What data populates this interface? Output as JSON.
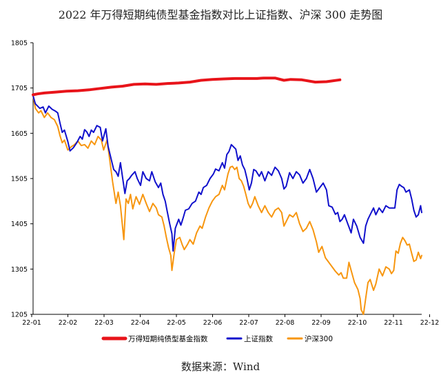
{
  "chart_data": {
    "type": "line",
    "title": "2022 年万得短期纯债型基金指数对比上证指数、沪深 300 走势图",
    "source": "数据来源：Wind",
    "x_ticks": [
      "22-01",
      "22-02",
      "22-03",
      "22-04",
      "22-05",
      "22-06",
      "22-07",
      "22-08",
      "22-09",
      "22-10",
      "22-11",
      "22-12"
    ],
    "y_ticks": [
      1205,
      1305,
      1405,
      1505,
      1605,
      1705,
      1805
    ],
    "ylim": [
      1205,
      1805
    ],
    "grid": false,
    "legend_position": "bottom",
    "series": [
      {
        "name": "万得短期纯债型基金指数",
        "color": "#e8141a",
        "points": [
          [
            0,
            1690
          ],
          [
            0.2,
            1692
          ],
          [
            0.5,
            1694
          ],
          [
            1,
            1696
          ],
          [
            1.5,
            1698
          ],
          [
            2,
            1699
          ],
          [
            2.5,
            1701
          ],
          [
            3,
            1704
          ],
          [
            3.5,
            1707
          ],
          [
            4,
            1709
          ],
          [
            4.5,
            1713
          ],
          [
            5,
            1714
          ],
          [
            5.5,
            1713
          ],
          [
            6,
            1715
          ],
          [
            6.5,
            1716
          ],
          [
            7,
            1718
          ],
          [
            7.5,
            1722
          ],
          [
            8,
            1724
          ],
          [
            8.5,
            1725
          ],
          [
            9,
            1726
          ],
          [
            9.5,
            1726
          ],
          [
            10,
            1726
          ],
          [
            10.3,
            1727
          ],
          [
            10.8,
            1727
          ],
          [
            11.2,
            1722
          ],
          [
            11.5,
            1724
          ],
          [
            12,
            1723
          ],
          [
            12.6,
            1718
          ],
          [
            13.1,
            1719
          ],
          [
            13.7,
            1723
          ]
        ]
      },
      {
        "name": "上证指数",
        "color": "#1010cc",
        "points": [
          [
            0,
            1688
          ],
          [
            0.1,
            1670
          ],
          [
            0.3,
            1660
          ],
          [
            0.45,
            1663
          ],
          [
            0.55,
            1650
          ],
          [
            0.7,
            1665
          ],
          [
            0.85,
            1658
          ],
          [
            1,
            1654
          ],
          [
            1.1,
            1650
          ],
          [
            1.2,
            1628
          ],
          [
            1.3,
            1607
          ],
          [
            1.4,
            1612
          ],
          [
            1.55,
            1587
          ],
          [
            1.65,
            1566
          ],
          [
            1.8,
            1573
          ],
          [
            1.95,
            1584
          ],
          [
            2.1,
            1598
          ],
          [
            2.2,
            1592
          ],
          [
            2.3,
            1613
          ],
          [
            2.4,
            1608
          ],
          [
            2.5,
            1598
          ],
          [
            2.6,
            1612
          ],
          [
            2.7,
            1607
          ],
          [
            2.85,
            1622
          ],
          [
            3,
            1618
          ],
          [
            3.1,
            1588
          ],
          [
            3.25,
            1615
          ],
          [
            3.35,
            1576
          ],
          [
            3.5,
            1545
          ],
          [
            3.6,
            1525
          ],
          [
            3.7,
            1520
          ],
          [
            3.8,
            1510
          ],
          [
            3.9,
            1540
          ],
          [
            4,
            1506
          ],
          [
            4.1,
            1472
          ],
          [
            4.2,
            1500
          ],
          [
            4.3,
            1505
          ],
          [
            4.4,
            1512
          ],
          [
            4.55,
            1520
          ],
          [
            4.65,
            1505
          ],
          [
            4.8,
            1490
          ],
          [
            4.9,
            1520
          ],
          [
            5.05,
            1505
          ],
          [
            5.2,
            1500
          ],
          [
            5.3,
            1520
          ],
          [
            5.45,
            1498
          ],
          [
            5.6,
            1485
          ],
          [
            5.7,
            1495
          ],
          [
            5.8,
            1470
          ],
          [
            5.9,
            1455
          ],
          [
            6,
            1430
          ],
          [
            6.1,
            1405
          ],
          [
            6.2,
            1383
          ],
          [
            6.25,
            1345
          ],
          [
            6.35,
            1395
          ],
          [
            6.5,
            1415
          ],
          [
            6.6,
            1402
          ],
          [
            6.7,
            1418
          ],
          [
            6.8,
            1435
          ],
          [
            6.95,
            1438
          ],
          [
            7.1,
            1450
          ],
          [
            7.25,
            1455
          ],
          [
            7.4,
            1475
          ],
          [
            7.5,
            1470
          ],
          [
            7.6,
            1485
          ],
          [
            7.75,
            1490
          ],
          [
            7.9,
            1505
          ],
          [
            8.05,
            1515
          ],
          [
            8.15,
            1526
          ],
          [
            8.3,
            1522
          ],
          [
            8.45,
            1540
          ],
          [
            8.55,
            1528
          ],
          [
            8.65,
            1558
          ],
          [
            8.75,
            1565
          ],
          [
            8.85,
            1580
          ],
          [
            8.95,
            1575
          ],
          [
            9.05,
            1570
          ],
          [
            9.15,
            1545
          ],
          [
            9.25,
            1555
          ],
          [
            9.35,
            1535
          ],
          [
            9.45,
            1525
          ],
          [
            9.55,
            1505
          ],
          [
            9.65,
            1480
          ],
          [
            9.75,
            1495
          ],
          [
            9.85,
            1525
          ],
          [
            9.95,
            1522
          ],
          [
            10.1,
            1510
          ],
          [
            10.2,
            1520
          ],
          [
            10.35,
            1500
          ],
          [
            10.5,
            1520
          ],
          [
            10.65,
            1512
          ],
          [
            10.8,
            1530
          ],
          [
            10.95,
            1522
          ],
          [
            11.1,
            1505
          ],
          [
            11.2,
            1482
          ],
          [
            11.3,
            1488
          ],
          [
            11.45,
            1518
          ],
          [
            11.6,
            1505
          ],
          [
            11.75,
            1520
          ],
          [
            11.9,
            1513
          ],
          [
            12.05,
            1495
          ],
          [
            12.2,
            1505
          ],
          [
            12.35,
            1525
          ],
          [
            12.5,
            1505
          ],
          [
            12.65,
            1475
          ],
          [
            12.8,
            1485
          ],
          [
            12.95,
            1495
          ],
          [
            13.1,
            1480
          ],
          [
            13.2,
            1445
          ],
          [
            13.35,
            1442
          ],
          [
            13.5,
            1426
          ],
          [
            13.6,
            1430
          ],
          [
            13.7,
            1410
          ],
          [
            13.8,
            1415
          ],
          [
            13.9,
            1425
          ],
          [
            14.05,
            1405
          ],
          [
            14.2,
            1385
          ],
          [
            14.3,
            1415
          ],
          [
            14.45,
            1400
          ],
          [
            14.6,
            1375
          ],
          [
            14.75,
            1362
          ],
          [
            14.85,
            1400
          ],
          [
            14.95,
            1415
          ],
          [
            15.05,
            1425
          ],
          [
            15.2,
            1440
          ],
          [
            15.3,
            1425
          ],
          [
            15.45,
            1440
          ],
          [
            15.6,
            1430
          ],
          [
            15.75,
            1445
          ],
          [
            15.9,
            1440
          ],
          [
            16.05,
            1440
          ],
          [
            16.15,
            1440
          ],
          [
            16.25,
            1480
          ],
          [
            16.35,
            1492
          ],
          [
            16.45,
            1488
          ],
          [
            16.55,
            1485
          ],
          [
            16.65,
            1475
          ],
          [
            16.8,
            1480
          ],
          [
            16.9,
            1460
          ],
          [
            17.0,
            1435
          ],
          [
            17.1,
            1420
          ],
          [
            17.2,
            1425
          ],
          [
            17.3,
            1445
          ],
          [
            17.35,
            1430
          ]
        ]
      },
      {
        "name": "沪深300",
        "color": "#f7960f",
        "points": [
          [
            0,
            1688
          ],
          [
            0.1,
            1660
          ],
          [
            0.25,
            1650
          ],
          [
            0.35,
            1655
          ],
          [
            0.5,
            1640
          ],
          [
            0.65,
            1650
          ],
          [
            0.8,
            1640
          ],
          [
            0.95,
            1635
          ],
          [
            1.1,
            1620
          ],
          [
            1.2,
            1600
          ],
          [
            1.3,
            1584
          ],
          [
            1.4,
            1590
          ],
          [
            1.55,
            1568
          ],
          [
            1.7,
            1575
          ],
          [
            1.85,
            1580
          ],
          [
            2,
            1588
          ],
          [
            2.15,
            1578
          ],
          [
            2.3,
            1580
          ],
          [
            2.45,
            1572
          ],
          [
            2.6,
            1588
          ],
          [
            2.75,
            1580
          ],
          [
            2.9,
            1598
          ],
          [
            3.05,
            1590
          ],
          [
            3.15,
            1568
          ],
          [
            3.3,
            1590
          ],
          [
            3.4,
            1555
          ],
          [
            3.55,
            1498
          ],
          [
            3.7,
            1450
          ],
          [
            3.8,
            1475
          ],
          [
            3.9,
            1445
          ],
          [
            4.05,
            1370
          ],
          [
            4.15,
            1460
          ],
          [
            4.25,
            1450
          ],
          [
            4.35,
            1470
          ],
          [
            4.45,
            1438
          ],
          [
            4.6,
            1465
          ],
          [
            4.75,
            1448
          ],
          [
            4.9,
            1470
          ],
          [
            5.05,
            1450
          ],
          [
            5.2,
            1432
          ],
          [
            5.35,
            1450
          ],
          [
            5.5,
            1440
          ],
          [
            5.6,
            1425
          ],
          [
            5.75,
            1420
          ],
          [
            5.85,
            1400
          ],
          [
            5.95,
            1375
          ],
          [
            6.05,
            1352
          ],
          [
            6.15,
            1335
          ],
          [
            6.2,
            1302
          ],
          [
            6.3,
            1340
          ],
          [
            6.4,
            1370
          ],
          [
            6.55,
            1375
          ],
          [
            6.65,
            1360
          ],
          [
            6.75,
            1348
          ],
          [
            6.9,
            1360
          ],
          [
            7,
            1370
          ],
          [
            7.15,
            1360
          ],
          [
            7.3,
            1385
          ],
          [
            7.45,
            1400
          ],
          [
            7.55,
            1395
          ],
          [
            7.7,
            1420
          ],
          [
            7.85,
            1440
          ],
          [
            8,
            1455
          ],
          [
            8.15,
            1465
          ],
          [
            8.3,
            1470
          ],
          [
            8.45,
            1490
          ],
          [
            8.55,
            1480
          ],
          [
            8.7,
            1515
          ],
          [
            8.8,
            1530
          ],
          [
            8.9,
            1532
          ],
          [
            9,
            1525
          ],
          [
            9.1,
            1530
          ],
          [
            9.2,
            1505
          ],
          [
            9.3,
            1500
          ],
          [
            9.4,
            1488
          ],
          [
            9.5,
            1470
          ],
          [
            9.6,
            1450
          ],
          [
            9.7,
            1440
          ],
          [
            9.8,
            1450
          ],
          [
            9.9,
            1465
          ],
          [
            10.05,
            1445
          ],
          [
            10.2,
            1430
          ],
          [
            10.35,
            1445
          ],
          [
            10.5,
            1430
          ],
          [
            10.65,
            1420
          ],
          [
            10.8,
            1435
          ],
          [
            10.95,
            1440
          ],
          [
            11.1,
            1430
          ],
          [
            11.2,
            1400
          ],
          [
            11.3,
            1410
          ],
          [
            11.45,
            1425
          ],
          [
            11.6,
            1420
          ],
          [
            11.75,
            1430
          ],
          [
            11.9,
            1405
          ],
          [
            12.05,
            1388
          ],
          [
            12.2,
            1395
          ],
          [
            12.35,
            1410
          ],
          [
            12.5,
            1392
          ],
          [
            12.65,
            1365
          ],
          [
            12.75,
            1342
          ],
          [
            12.9,
            1355
          ],
          [
            13.05,
            1330
          ],
          [
            13.2,
            1320
          ],
          [
            13.35,
            1310
          ],
          [
            13.5,
            1300
          ],
          [
            13.65,
            1292
          ],
          [
            13.75,
            1297
          ],
          [
            13.85,
            1285
          ],
          [
            14.0,
            1285
          ],
          [
            14.1,
            1320
          ],
          [
            14.2,
            1302
          ],
          [
            14.35,
            1275
          ],
          [
            14.5,
            1260
          ],
          [
            14.6,
            1240
          ],
          [
            14.65,
            1215
          ],
          [
            14.75,
            1205
          ],
          [
            14.85,
            1240
          ],
          [
            14.95,
            1275
          ],
          [
            15.05,
            1282
          ],
          [
            15.2,
            1258
          ],
          [
            15.3,
            1272
          ],
          [
            15.45,
            1305
          ],
          [
            15.6,
            1290
          ],
          [
            15.75,
            1310
          ],
          [
            15.9,
            1305
          ],
          [
            16.0,
            1295
          ],
          [
            16.1,
            1302
          ],
          [
            16.2,
            1345
          ],
          [
            16.3,
            1340
          ],
          [
            16.4,
            1362
          ],
          [
            16.5,
            1375
          ],
          [
            16.6,
            1368
          ],
          [
            16.7,
            1358
          ],
          [
            16.8,
            1360
          ],
          [
            16.9,
            1340
          ],
          [
            17.0,
            1322
          ],
          [
            17.1,
            1325
          ],
          [
            17.2,
            1342
          ],
          [
            17.3,
            1328
          ],
          [
            17.35,
            1335
          ]
        ]
      }
    ]
  }
}
